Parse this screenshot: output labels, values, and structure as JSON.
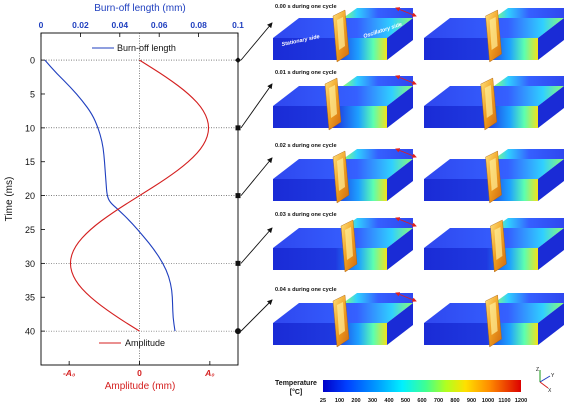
{
  "chart_data": {
    "type": "line",
    "top_axis": {
      "label": "Burn-off length (mm)",
      "ticks": [
        0,
        0.02,
        0.04,
        0.06,
        0.08,
        0.1
      ],
      "tick_labels": [
        "0",
        "0.02",
        "0.04",
        "0.06",
        "0.08",
        "0.1"
      ],
      "range": [
        0,
        0.1
      ],
      "color": "#1f3fbf"
    },
    "bottom_axis": {
      "label": "Amplitude (mm)",
      "tick_labels": [
        "-A₀",
        "0",
        "A₀"
      ],
      "range": [
        -1.4,
        1.4
      ],
      "color": "#d42020"
    },
    "y_axis": {
      "label": "Time (ms)",
      "ticks": [
        0,
        5,
        10,
        15,
        20,
        25,
        30,
        35,
        40
      ],
      "range": [
        -4,
        45
      ],
      "reversed": true
    },
    "series": [
      {
        "name": "Burn-off length",
        "color": "#1f3fbf",
        "time": [
          0,
          2,
          4,
          6,
          8,
          10,
          12,
          14,
          16,
          18,
          20,
          21,
          22,
          24,
          26,
          28,
          30,
          32,
          34,
          36,
          38,
          40
        ],
        "values": [
          0.002,
          0.008,
          0.015,
          0.021,
          0.026,
          0.029,
          0.031,
          0.032,
          0.0325,
          0.033,
          0.0335,
          0.035,
          0.039,
          0.046,
          0.052,
          0.0575,
          0.062,
          0.065,
          0.0665,
          0.0668,
          0.067,
          0.068
        ]
      },
      {
        "name": "Amplitude",
        "color": "#d42020",
        "time": [
          0,
          2.5,
          5,
          7.5,
          10,
          12.5,
          15,
          17.5,
          20,
          22.5,
          25,
          27.5,
          30,
          32.5,
          35,
          37.5,
          40
        ],
        "values": [
          0,
          0.383,
          0.707,
          0.924,
          1.0,
          0.924,
          0.707,
          0.383,
          0,
          -0.383,
          -0.707,
          -0.924,
          -1.0,
          -0.924,
          -0.707,
          -0.383,
          0
        ]
      }
    ],
    "legend": {
      "burnoff": "Burn-off length",
      "amplitude": "Amplitude"
    },
    "markers_at_ms": [
      0,
      10,
      20,
      30,
      40
    ]
  },
  "panels": [
    {
      "label": "0.00 s during one cycle"
    },
    {
      "label": "0.01 s during one cycle"
    },
    {
      "label": "0.02 s during one cycle"
    },
    {
      "label": "0.03 s during one cycle"
    },
    {
      "label": "0.04 s during one cycle"
    }
  ],
  "side_labels": {
    "stationary": "Stationary side",
    "oscillatory": "Oscillatory side"
  },
  "colorbar": {
    "title": "Temperature",
    "unit": "[°C]",
    "ticks": [
      "25",
      "100",
      "200",
      "300",
      "400",
      "500",
      "600",
      "700",
      "800",
      "900",
      "1000",
      "1100",
      "1200"
    ],
    "colors": [
      "#0000c8",
      "#0028ff",
      "#0064ff",
      "#00a0ff",
      "#00d8ff",
      "#00ffc8",
      "#50ff78",
      "#a0ff28",
      "#e6ff00",
      "#ffd200",
      "#ff9600",
      "#ff5a00",
      "#e10000"
    ]
  },
  "axes_triad": {
    "x": "X",
    "y": "Y",
    "z": "Z"
  }
}
